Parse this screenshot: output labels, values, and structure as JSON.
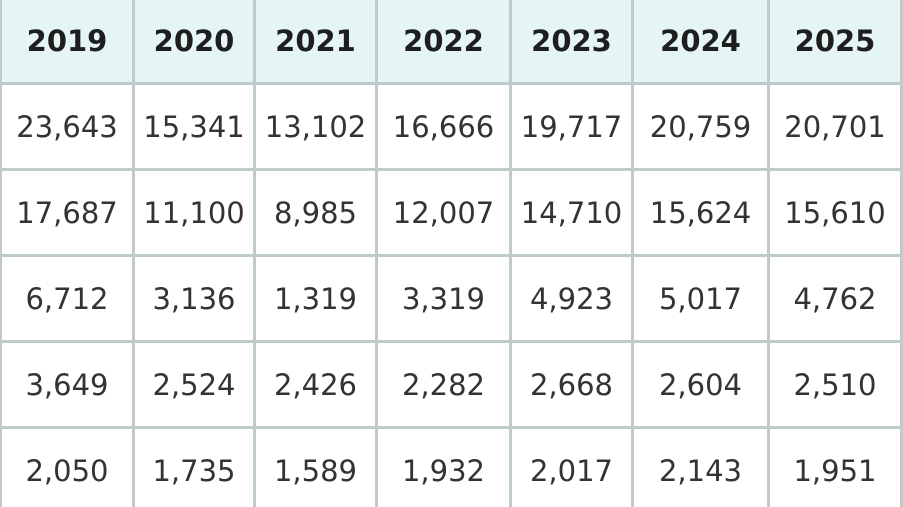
{
  "table": {
    "header": [
      "2019",
      "2020",
      "2021",
      "2022",
      "2023",
      "2024",
      "2025"
    ],
    "rows": [
      [
        "23,643",
        "15,341",
        "13,102",
        "16,666",
        "19,717",
        "20,759",
        "20,701"
      ],
      [
        "17,687",
        "11,100",
        "8,985",
        "12,007",
        "14,710",
        "15,624",
        "15,610"
      ],
      [
        "6,712",
        "3,136",
        "1,319",
        "3,319",
        "4,923",
        "5,017",
        "4,762"
      ],
      [
        "3,649",
        "2,524",
        "2,426",
        "2,282",
        "2,668",
        "2,604",
        "2,510"
      ],
      [
        "2,050",
        "1,735",
        "1,589",
        "1,932",
        "2,017",
        "2,143",
        "1,951"
      ]
    ]
  }
}
